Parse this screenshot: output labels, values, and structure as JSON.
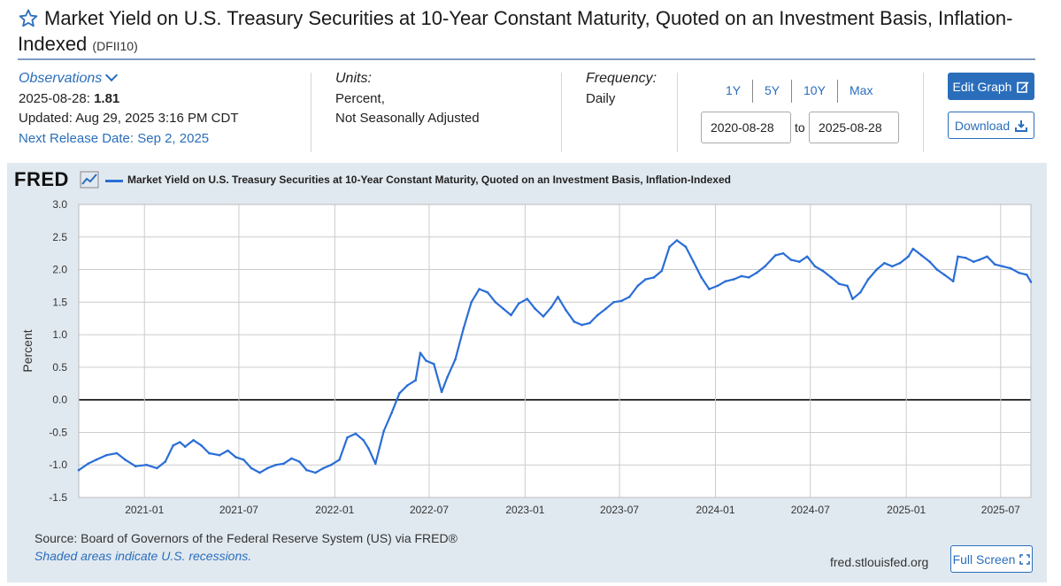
{
  "header": {
    "title": "Market Yield on U.S. Treasury Securities at 10-Year Constant Maturity, Quoted on an Investment Basis, Inflation-Indexed",
    "title_line1": "Market Yield on U.S. Treasury Securities at 10-Year Constant Maturity, Quoted on an Investment Basis, Inflation-",
    "title_line2": "Indexed",
    "series_id": "(DFII10)"
  },
  "observations": {
    "label": "Observations",
    "latest_date": "2025-08-28:",
    "latest_value": "1.81",
    "updated": "Updated: Aug 29, 2025 3:16 PM CDT",
    "next_release": "Next Release Date: Sep 2, 2025"
  },
  "units": {
    "label": "Units:",
    "line1": "Percent,",
    "line2": "Not Seasonally Adjusted"
  },
  "frequency": {
    "label": "Frequency:",
    "value": "Daily"
  },
  "range": {
    "buttons": [
      "1Y",
      "5Y",
      "10Y",
      "Max"
    ],
    "start": "2020-08-28",
    "to_label": "to",
    "end": "2025-08-28"
  },
  "actions": {
    "edit_graph": "Edit Graph",
    "download": "Download",
    "full_screen": "Full Screen"
  },
  "footer": {
    "logo": "FRED",
    "source": "Source: Board of Governors of the Federal Reserve System (US) via FRED®",
    "recession_note": "Shaded areas indicate U.S. recessions.",
    "site": "fred.stlouisfed.org"
  },
  "colors": {
    "accent": "#2a6ebb",
    "series": "#2a6ed6",
    "panel_bg": "#e1e9f0"
  },
  "chart_data": {
    "type": "line",
    "title": "Market Yield on U.S. Treasury Securities at 10-Year Constant Maturity, Quoted on an Investment Basis, Inflation-Indexed",
    "xlabel": "",
    "ylabel": "Percent",
    "ylim": [
      -1.5,
      3.0
    ],
    "yticks": [
      "3.0",
      "2.5",
      "2.0",
      "1.5",
      "1.0",
      "0.5",
      "0.0",
      "-0.5",
      "-1.0",
      "-1.5"
    ],
    "xticks": [
      "2021-01",
      "2021-07",
      "2022-01",
      "2022-07",
      "2023-01",
      "2023-07",
      "2024-01",
      "2024-07",
      "2025-01",
      "2025-07"
    ],
    "xrange": [
      "2020-08-28",
      "2025-08-28"
    ],
    "grid": true,
    "legend": "top-left",
    "series": [
      {
        "name": "Market Yield on U.S. Treasury Securities at 10-Year Constant Maturity, Quoted on an Investment Basis, Inflation-Indexed",
        "x": [
          "2020-08-28",
          "2020-09-15",
          "2020-10-01",
          "2020-10-20",
          "2020-11-09",
          "2020-11-25",
          "2020-12-15",
          "2021-01-05",
          "2021-01-25",
          "2021-02-10",
          "2021-02-25",
          "2021-03-10",
          "2021-03-20",
          "2021-04-05",
          "2021-04-20",
          "2021-05-05",
          "2021-05-25",
          "2021-06-10",
          "2021-06-25",
          "2021-07-10",
          "2021-07-25",
          "2021-08-10",
          "2021-08-25",
          "2021-09-10",
          "2021-09-25",
          "2021-10-10",
          "2021-10-25",
          "2021-11-08",
          "2021-11-25",
          "2021-12-10",
          "2021-12-25",
          "2022-01-10",
          "2022-01-25",
          "2022-02-10",
          "2022-02-25",
          "2022-03-07",
          "2022-03-20",
          "2022-04-05",
          "2022-04-20",
          "2022-05-05",
          "2022-05-20",
          "2022-06-05",
          "2022-06-14",
          "2022-06-25",
          "2022-07-10",
          "2022-07-25",
          "2022-08-05",
          "2022-08-20",
          "2022-09-05",
          "2022-09-20",
          "2022-10-05",
          "2022-10-21",
          "2022-11-05",
          "2022-11-20",
          "2022-12-05",
          "2022-12-20",
          "2023-01-05",
          "2023-01-20",
          "2023-02-05",
          "2023-02-20",
          "2023-03-05",
          "2023-03-20",
          "2023-04-05",
          "2023-04-20",
          "2023-05-05",
          "2023-05-20",
          "2023-06-05",
          "2023-06-20",
          "2023-07-05",
          "2023-07-20",
          "2023-08-05",
          "2023-08-20",
          "2023-09-05",
          "2023-09-20",
          "2023-10-05",
          "2023-10-19",
          "2023-11-05",
          "2023-11-20",
          "2023-12-05",
          "2023-12-20",
          "2024-01-05",
          "2024-01-20",
          "2024-02-05",
          "2024-02-20",
          "2024-03-05",
          "2024-03-20",
          "2024-04-05",
          "2024-04-25",
          "2024-05-10",
          "2024-05-25",
          "2024-06-10",
          "2024-06-25",
          "2024-07-10",
          "2024-07-25",
          "2024-08-10",
          "2024-08-25",
          "2024-09-10",
          "2024-09-20",
          "2024-10-05",
          "2024-10-20",
          "2024-11-05",
          "2024-11-20",
          "2024-12-05",
          "2024-12-20",
          "2025-01-05",
          "2025-01-14",
          "2025-01-30",
          "2025-02-15",
          "2025-03-01",
          "2025-03-15",
          "2025-04-01",
          "2025-04-10",
          "2025-04-25",
          "2025-05-10",
          "2025-05-21",
          "2025-06-05",
          "2025-06-20",
          "2025-07-05",
          "2025-07-20",
          "2025-08-05",
          "2025-08-20",
          "2025-08-28"
        ],
        "y": [
          -1.08,
          -0.98,
          -0.92,
          -0.85,
          -0.82,
          -0.92,
          -1.02,
          -1.0,
          -1.05,
          -0.95,
          -0.7,
          -0.65,
          -0.72,
          -0.62,
          -0.7,
          -0.82,
          -0.85,
          -0.78,
          -0.88,
          -0.92,
          -1.05,
          -1.12,
          -1.05,
          -1.0,
          -0.98,
          -0.9,
          -0.95,
          -1.08,
          -1.12,
          -1.05,
          -1.0,
          -0.92,
          -0.58,
          -0.52,
          -0.62,
          -0.75,
          -0.98,
          -0.48,
          -0.2,
          0.1,
          0.22,
          0.3,
          0.72,
          0.6,
          0.55,
          0.12,
          0.35,
          0.62,
          1.1,
          1.5,
          1.7,
          1.65,
          1.5,
          1.4,
          1.3,
          1.48,
          1.55,
          1.4,
          1.28,
          1.42,
          1.58,
          1.38,
          1.2,
          1.15,
          1.18,
          1.3,
          1.4,
          1.5,
          1.52,
          1.58,
          1.75,
          1.85,
          1.88,
          1.98,
          2.35,
          2.45,
          2.35,
          2.12,
          1.88,
          1.7,
          1.75,
          1.82,
          1.85,
          1.9,
          1.88,
          1.95,
          2.05,
          2.22,
          2.25,
          2.15,
          2.12,
          2.2,
          2.05,
          1.98,
          1.88,
          1.78,
          1.75,
          1.55,
          1.65,
          1.85,
          2.0,
          2.1,
          2.05,
          2.1,
          2.2,
          2.32,
          2.22,
          2.12,
          2.0,
          1.92,
          1.82,
          2.2,
          2.18,
          2.12,
          2.15,
          2.2,
          2.08,
          2.05,
          2.02,
          1.95,
          1.92,
          1.81
        ]
      }
    ]
  }
}
